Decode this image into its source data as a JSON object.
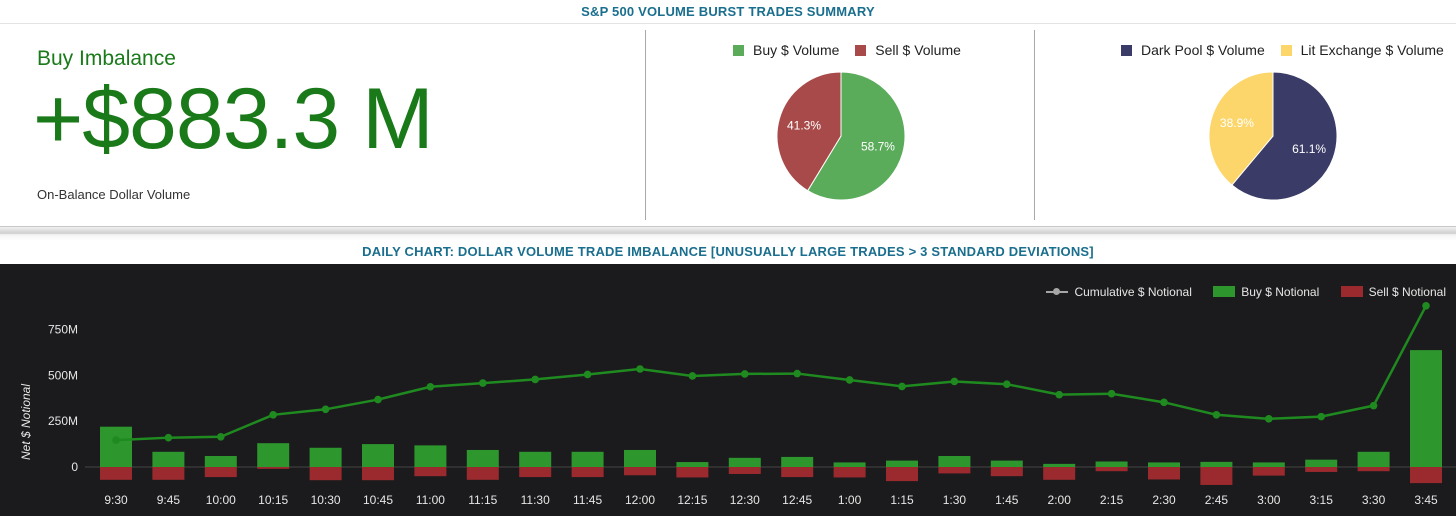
{
  "summary": {
    "title": "S&P 500 VOLUME BURST TRADES SUMMARY",
    "imbalance_label": "Buy Imbalance",
    "imbalance_value": "+$883.3 M",
    "imbalance_sublabel": "On-Balance Dollar Volume"
  },
  "daily": {
    "title": "DAILY CHART: DOLLAR VOLUME TRADE IMBALANCE [UNUSUALLY LARGE TRADES > 3 STANDARD DEVIATIONS]"
  },
  "colors": {
    "accent_green": "#1a7a1a",
    "title_blue": "#1a6e8e",
    "buy": "#5aab5a",
    "sell": "#a94a4a",
    "dark_pool": "#3a3b66",
    "lit_exchange": "#fcd66a",
    "bar_buy": "#2d962d",
    "bar_sell": "#9b2a2e",
    "cumulative_line": "#1f8a1f"
  },
  "chart_data": [
    {
      "type": "pie",
      "legend": [
        "Buy $ Volume",
        "Sell $ Volume"
      ],
      "slices": [
        {
          "name": "Buy $ Volume",
          "value": 58.7,
          "label": "58.7%"
        },
        {
          "name": "Sell $ Volume",
          "value": 41.3,
          "label": "41.3%"
        }
      ],
      "legend_position": "top"
    },
    {
      "type": "pie",
      "legend": [
        "Dark Pool $ Volume",
        "Lit Exchange $ Volume"
      ],
      "slices": [
        {
          "name": "Dark Pool $ Volume",
          "value": 61.1,
          "label": "61.1%"
        },
        {
          "name": "Lit Exchange $ Volume",
          "value": 38.9,
          "label": "38.9%"
        }
      ],
      "legend_position": "top"
    },
    {
      "type": "bar",
      "ylabel": "Net $ Notional",
      "yticks": [
        "0",
        "250M",
        "500M",
        "750M"
      ],
      "ytick_values": [
        0,
        250,
        500,
        750
      ],
      "ylim": [
        -100,
        1000
      ],
      "units": "millions USD",
      "categories": [
        "9:30",
        "9:45",
        "10:00",
        "10:15",
        "10:30",
        "10:45",
        "11:00",
        "11:15",
        "11:30",
        "11:45",
        "12:00",
        "12:15",
        "12:30",
        "12:45",
        "1:00",
        "1:15",
        "1:30",
        "1:45",
        "2:00",
        "2:15",
        "2:30",
        "2:45",
        "3:00",
        "3:15",
        "3:30",
        "3:45"
      ],
      "legend_position": "top-right",
      "series": [
        {
          "name": "Cumulative $ Notional",
          "kind": "line",
          "values": [
            147,
            160,
            165,
            285,
            315,
            368,
            438,
            458,
            478,
            505,
            535,
            497,
            508,
            510,
            475,
            440,
            467,
            452,
            395,
            400,
            353,
            285,
            263,
            275,
            335,
            880
          ]
        },
        {
          "name": "Buy $ Notional",
          "kind": "bar",
          "values": [
            220,
            83,
            60,
            130,
            105,
            125,
            118,
            93,
            83,
            83,
            93,
            27,
            50,
            55,
            25,
            35,
            60,
            35,
            17,
            30,
            25,
            28,
            25,
            40,
            83,
            638
          ]
        },
        {
          "name": "Sell $ Notional",
          "kind": "bar",
          "values": [
            -70,
            -70,
            -55,
            -10,
            -72,
            -72,
            -50,
            -70,
            -55,
            -55,
            -45,
            -57,
            -38,
            -55,
            -57,
            -77,
            -35,
            -50,
            -70,
            -23,
            -68,
            -98,
            -47,
            -27,
            -23,
            -88
          ]
        }
      ],
      "grid": false
    }
  ]
}
